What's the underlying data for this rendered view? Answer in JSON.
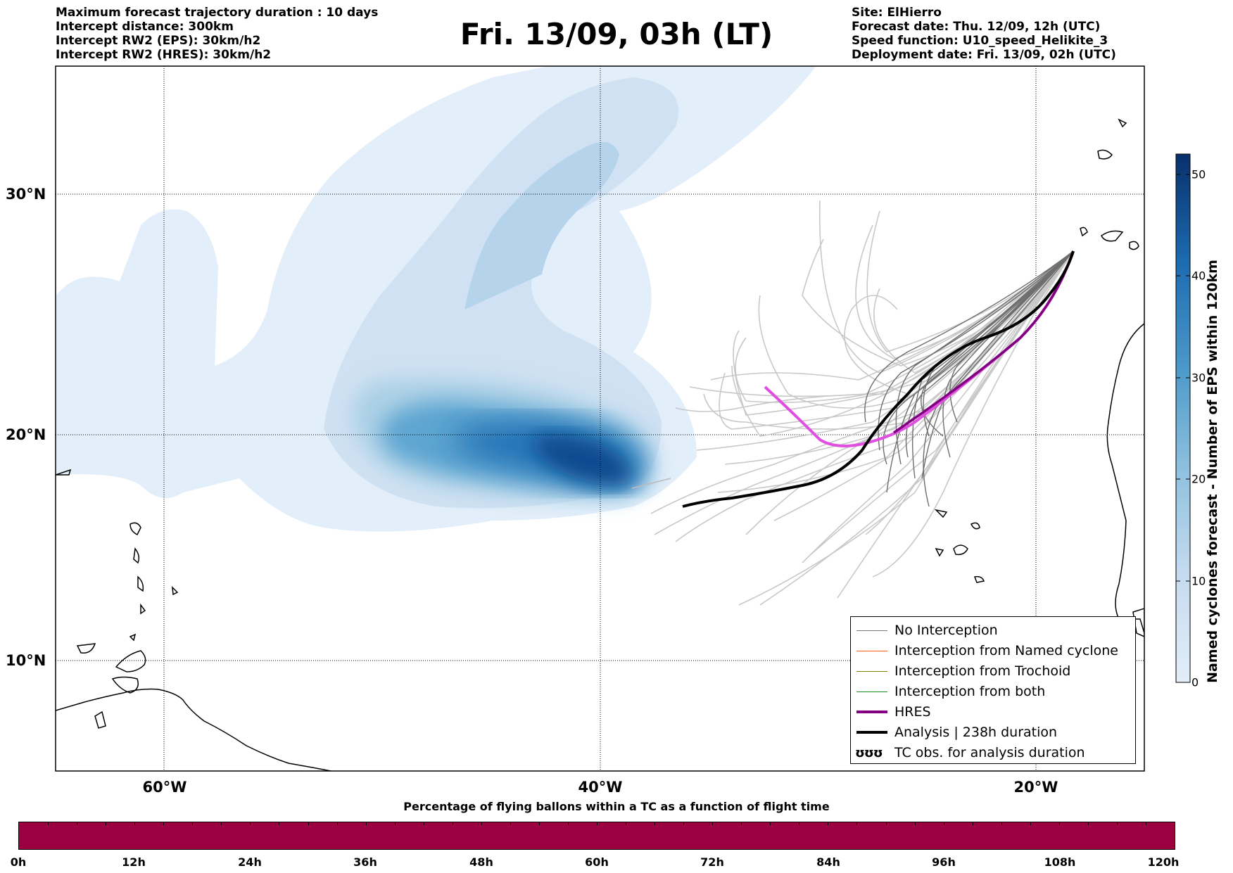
{
  "header": {
    "left": [
      "Maximum forecast trajectory duration : 10 days",
      "Intercept distance: 300km",
      "Intercept RW2 (EPS):  30km/h2",
      "Intercept RW2 (HRES): 30km/h2"
    ],
    "title": "Fri. 13/09, 03h (LT)",
    "right": [
      "Site: ElHierro",
      "Forecast date: Thu. 12/09, 12h (UTC)",
      "Speed function: U10_speed_Helikite_3",
      "Deployment date: Fri. 13/09, 02h (UTC)"
    ]
  },
  "map": {
    "lat_labels": [
      "30°N",
      "20°N",
      "10°N"
    ],
    "lon_labels": [
      "60°W",
      "40°W",
      "20°W"
    ]
  },
  "legend": {
    "items": [
      {
        "label": "No Interception",
        "color": "#777777"
      },
      {
        "label": "Interception from Named cyclone",
        "color": "#ff5a1a"
      },
      {
        "label": "Interception from Trochoid",
        "color": "#808000"
      },
      {
        "label": "Interception from both",
        "color": "#1a8a1a"
      },
      {
        "label": "HRES",
        "color": "#800080"
      },
      {
        "label": "Analysis | 238h duration",
        "color": "#000000"
      },
      {
        "label": "TC obs. for analysis duration",
        "icon": "ʊʊʊ"
      }
    ]
  },
  "colorbar": {
    "label": "Named cyclones forecast - Number of EPS within 120km",
    "ticks": [
      "0",
      "10",
      "20",
      "30",
      "40",
      "50"
    ],
    "colors": [
      "#e2eef9",
      "#08306b"
    ]
  },
  "timebar": {
    "title": "Percentage of flying ballons within a TC as a function of flight time",
    "ticks": [
      "0h",
      "12h",
      "24h",
      "36h",
      "48h",
      "60h",
      "72h",
      "84h",
      "96h",
      "108h",
      "120h"
    ],
    "color": "#9b0040"
  }
}
